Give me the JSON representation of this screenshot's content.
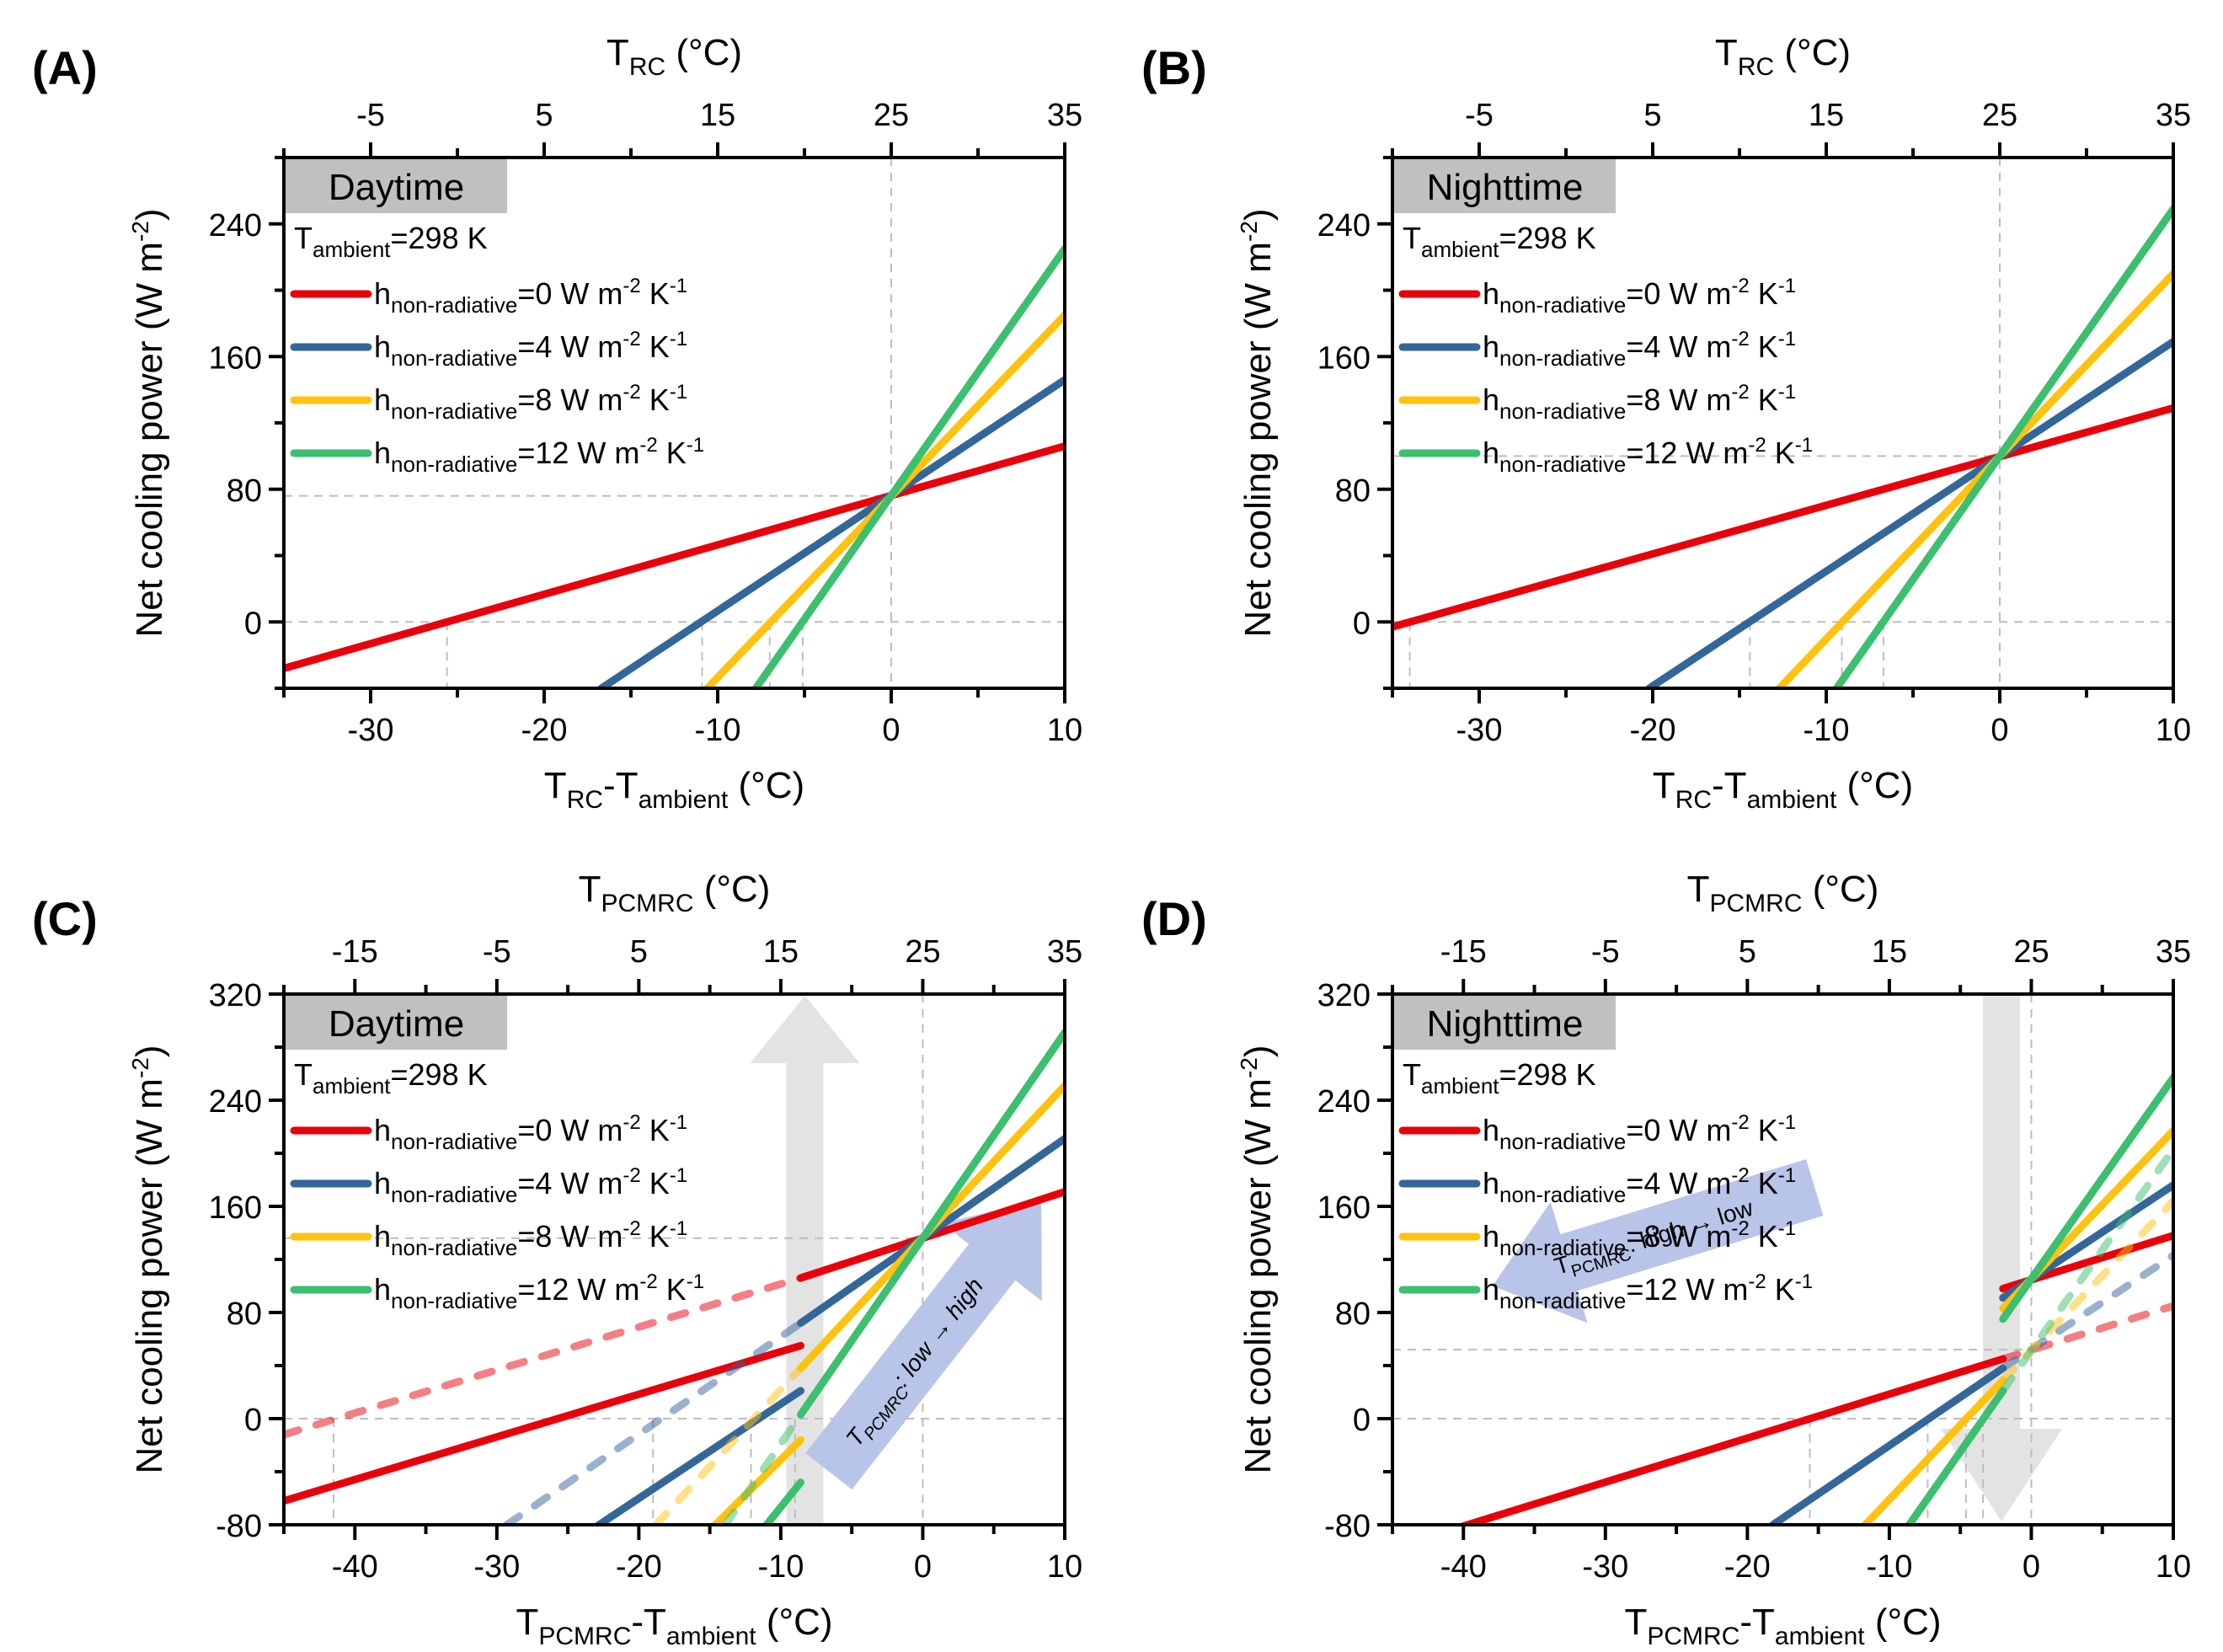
{
  "colors": {
    "h0": "#e8000b",
    "h4": "#336699",
    "h8": "#ffc20e",
    "h12": "#3cbf6e",
    "badge_bg": "#c0c0c0",
    "guide": "#bdbdbd",
    "state_arrow": "#e3e3e3",
    "direction_arrow": "#b8c4e8"
  },
  "legend_entries": [
    {
      "key": "h0",
      "prefix": "h",
      "sub": "non-radiative",
      "value": "=0 W m",
      "sup1": "-2",
      "mid": " K",
      "sup2": "-1"
    },
    {
      "key": "h4",
      "prefix": "h",
      "sub": "non-radiative",
      "value": "=4 W m",
      "sup1": "-2",
      "mid": " K",
      "sup2": "-1"
    },
    {
      "key": "h8",
      "prefix": "h",
      "sub": "non-radiative",
      "value": "=8 W m",
      "sup1": "-2",
      "mid": " K",
      "sup2": "-1"
    },
    {
      "key": "h12",
      "prefix": "h",
      "sub": "non-radiative",
      "value": "=12 W m",
      "sup1": "-2",
      "mid": " K",
      "sup2": "-1"
    }
  ],
  "ambient_label": {
    "main": "T",
    "sub": "ambient",
    "rest": "=298 K"
  },
  "chart_data": [
    {
      "id": "A",
      "type": "line",
      "panel_label": "(A)",
      "badge": "Daytime",
      "xlabel": {
        "main": "T",
        "sub1": "RC",
        "mid": "-T",
        "sub2": "ambient",
        "rest": " (°C)"
      },
      "top_xlabel": {
        "main": "T",
        "sub": "RC",
        "rest": " (°C)"
      },
      "ylabel": {
        "main": "Net cooling power (W m",
        "sup": "-2",
        "rest": ")"
      },
      "xlim": [
        -35,
        10
      ],
      "ylim": [
        -40,
        280
      ],
      "xticks": [
        -30,
        -20,
        -10,
        0,
        10
      ],
      "yticks": [
        0,
        80,
        160,
        240
      ],
      "top_xticks": [
        "-5",
        "5",
        "15",
        "25",
        "35"
      ],
      "top_xtick_positions": [
        -30,
        -20,
        -10,
        0,
        10
      ],
      "guides": {
        "hline": [
          0,
          76
        ],
        "vline": [
          0
        ],
        "zero_crossings": [
          -25.6,
          -10.9,
          -7.0,
          -5.1
        ]
      },
      "series": [
        {
          "key": "h0",
          "segments": [
            {
              "x": [
                -35,
                10
              ],
              "y": [
                -28,
                106
              ],
              "style": "solid"
            }
          ]
        },
        {
          "key": "h4",
          "segments": [
            {
              "x": [
                -16.7,
                10
              ],
              "y": [
                -40,
                146
              ],
              "style": "solid"
            }
          ]
        },
        {
          "key": "h8",
          "segments": [
            {
              "x": [
                -10.6,
                10
              ],
              "y": [
                -40,
                185
              ],
              "style": "solid"
            }
          ]
        },
        {
          "key": "h12",
          "segments": [
            {
              "x": [
                -7.8,
                10
              ],
              "y": [
                -40,
                225
              ],
              "style": "solid"
            }
          ]
        }
      ]
    },
    {
      "id": "B",
      "type": "line",
      "panel_label": "(B)",
      "badge": "Nighttime",
      "xlabel": {
        "main": "T",
        "sub1": "RC",
        "mid": "-T",
        "sub2": "ambient",
        "rest": " (°C)"
      },
      "top_xlabel": {
        "main": "T",
        "sub": "RC",
        "rest": " (°C)"
      },
      "ylabel": {
        "main": "Net cooling power (W m",
        "sup": "-2",
        "rest": ")"
      },
      "xlim": [
        -35,
        10
      ],
      "ylim": [
        -40,
        280
      ],
      "xticks": [
        -30,
        -20,
        -10,
        0,
        10
      ],
      "yticks": [
        0,
        80,
        160,
        240
      ],
      "top_xticks": [
        "-5",
        "5",
        "15",
        "25",
        "35"
      ],
      "top_xtick_positions": [
        -30,
        -20,
        -10,
        0,
        10
      ],
      "guides": {
        "hline": [
          0,
          100
        ],
        "vline": [
          0
        ],
        "zero_crossings": [
          -34.0,
          -14.4,
          -9.1,
          -6.7
        ]
      },
      "series": [
        {
          "key": "h0",
          "segments": [
            {
              "x": [
                -35,
                10
              ],
              "y": [
                -3,
                129
              ],
              "style": "solid"
            }
          ]
        },
        {
          "key": "h4",
          "segments": [
            {
              "x": [
                -20.2,
                10
              ],
              "y": [
                -40,
                169
              ],
              "style": "solid"
            }
          ]
        },
        {
          "key": "h8",
          "segments": [
            {
              "x": [
                -12.7,
                10
              ],
              "y": [
                -40,
                210
              ],
              "style": "solid"
            }
          ]
        },
        {
          "key": "h12",
          "segments": [
            {
              "x": [
                -9.4,
                10
              ],
              "y": [
                -40,
                249
              ],
              "style": "solid"
            }
          ]
        }
      ]
    },
    {
      "id": "C",
      "type": "line",
      "panel_label": "(C)",
      "badge": "Daytime",
      "xlabel": {
        "main": "T",
        "sub1": "PCMRC",
        "mid": "-T",
        "sub2": "ambient",
        "rest": " (°C)"
      },
      "top_xlabel": {
        "main": "T",
        "sub": "PCMRC",
        "rest": " (°C)"
      },
      "ylabel": {
        "main": "Net cooling power (W m",
        "sup": "-2",
        "rest": ")"
      },
      "xlim": [
        -45,
        10
      ],
      "ylim": [
        -80,
        320
      ],
      "xticks": [
        -40,
        -30,
        -20,
        -10,
        0,
        10
      ],
      "yticks": [
        -80,
        0,
        80,
        160,
        240,
        320
      ],
      "top_xticks": [
        "-15",
        "-5",
        "5",
        "15",
        "25",
        "35"
      ],
      "top_xtick_positions": [
        -40,
        -30,
        -20,
        -10,
        0,
        10
      ],
      "guides": {
        "hline": [
          0,
          136
        ],
        "vline": [
          0
        ],
        "zero_crossings": [
          -41.5,
          -19.0,
          -12.1,
          -9.0
        ]
      },
      "phase_change_band": [
        -10.5,
        -7.6
      ],
      "state_arrow": {
        "direction": "up",
        "x": -8.3
      },
      "direction_arrow": {
        "text_main": "T",
        "text_sub": "PCMRC",
        "text_rest": ": low → high"
      },
      "series": [
        {
          "key": "h0",
          "segments": [
            {
              "x": [
                -45,
                -8.6
              ],
              "y": [
                -62,
                55
              ],
              "style": "solid"
            },
            {
              "x": [
                -45,
                -8.6
              ],
              "y": [
                -12,
                106
              ],
              "style": "dashed"
            },
            {
              "x": [
                -8.6,
                10
              ],
              "y": [
                106,
                171
              ],
              "style": "solid"
            }
          ]
        },
        {
          "key": "h4",
          "segments": [
            {
              "x": [
                -22.8,
                -8.6
              ],
              "y": [
                -80,
                21
              ],
              "style": "solid"
            },
            {
              "x": [
                -29.3,
                -8.6
              ],
              "y": [
                -80,
                72
              ],
              "style": "dashed"
            },
            {
              "x": [
                -8.6,
                10
              ],
              "y": [
                72,
                211
              ],
              "style": "solid"
            }
          ]
        },
        {
          "key": "h8",
          "segments": [
            {
              "x": [
                -14.6,
                -8.6
              ],
              "y": [
                -80,
                -16
              ],
              "style": "solid"
            },
            {
              "x": [
                -18.8,
                -8.6
              ],
              "y": [
                -80,
                38
              ],
              "style": "dashed"
            },
            {
              "x": [
                -8.6,
                10
              ],
              "y": [
                38,
                251
              ],
              "style": "solid"
            }
          ]
        },
        {
          "key": "h12",
          "segments": [
            {
              "x": [
                -11.0,
                -8.6
              ],
              "y": [
                -80,
                -48
              ],
              "style": "solid"
            },
            {
              "x": [
                -13.9,
                -8.6
              ],
              "y": [
                -80,
                3
              ],
              "style": "dashed"
            },
            {
              "x": [
                -8.6,
                10
              ],
              "y": [
                3,
                291
              ],
              "style": "solid"
            }
          ]
        }
      ]
    },
    {
      "id": "D",
      "type": "line",
      "panel_label": "(D)",
      "badge": "Nighttime",
      "xlabel": {
        "main": "T",
        "sub1": "PCMRC",
        "mid": "-T",
        "sub2": "ambient",
        "rest": " (°C)"
      },
      "top_xlabel": {
        "main": "T",
        "sub": "PCMRC",
        "rest": " (°C)"
      },
      "ylabel": {
        "main": "Net cooling power (W m",
        "sup": "-2",
        "rest": ")"
      },
      "xlim": [
        -45,
        10
      ],
      "ylim": [
        -80,
        320
      ],
      "xticks": [
        -40,
        -30,
        -20,
        -10,
        0,
        10
      ],
      "yticks": [
        -80,
        0,
        80,
        160,
        240,
        320
      ],
      "top_xticks": [
        "-15",
        "-5",
        "5",
        "15",
        "25",
        "35"
      ],
      "top_xtick_positions": [
        -40,
        -30,
        -20,
        -10,
        0,
        10
      ],
      "guides": {
        "hline": [
          0,
          52
        ],
        "vline": [
          0
        ],
        "zero_crossings": [
          -15.6,
          -7.3,
          -4.6,
          -3.4
        ]
      },
      "phase_change_band": [
        -3.3,
        -0.9
      ],
      "state_arrow": {
        "direction": "down",
        "x": -2.1
      },
      "direction_arrow": {
        "text_main": "T",
        "text_sub": "PCMRC",
        "text_rest": ": high → low"
      },
      "series": [
        {
          "key": "h0",
          "segments": [
            {
              "x": [
                -40,
                -2
              ],
              "y": [
                -81,
                45
              ],
              "style": "solid"
            },
            {
              "x": [
                -2,
                10
              ],
              "y": [
                45,
                85
              ],
              "style": "dashed"
            },
            {
              "x": [
                -2,
                10
              ],
              "y": [
                98,
                138
              ],
              "style": "solid"
            }
          ]
        },
        {
          "key": "h4",
          "segments": [
            {
              "x": [
                -18.2,
                -2
              ],
              "y": [
                -80,
                38
              ],
              "style": "solid"
            },
            {
              "x": [
                -2,
                10
              ],
              "y": [
                38,
                123
              ],
              "style": "dashed"
            },
            {
              "x": [
                -2,
                10
              ],
              "y": [
                91,
                176
              ],
              "style": "solid"
            }
          ]
        },
        {
          "key": "h8",
          "segments": [
            {
              "x": [
                -11.7,
                -2
              ],
              "y": [
                -80,
                29
              ],
              "style": "solid"
            },
            {
              "x": [
                -2,
                10
              ],
              "y": [
                29,
                164
              ],
              "style": "dashed"
            },
            {
              "x": [
                -2,
                10
              ],
              "y": [
                83,
                217
              ],
              "style": "solid"
            }
          ]
        },
        {
          "key": "h12",
          "segments": [
            {
              "x": [
                -8.6,
                -2
              ],
              "y": [
                -80,
                21
              ],
              "style": "solid"
            },
            {
              "x": [
                -2,
                10
              ],
              "y": [
                21,
                203
              ],
              "style": "dashed"
            },
            {
              "x": [
                -2,
                10
              ],
              "y": [
                75,
                257
              ],
              "style": "solid"
            }
          ]
        }
      ]
    }
  ]
}
